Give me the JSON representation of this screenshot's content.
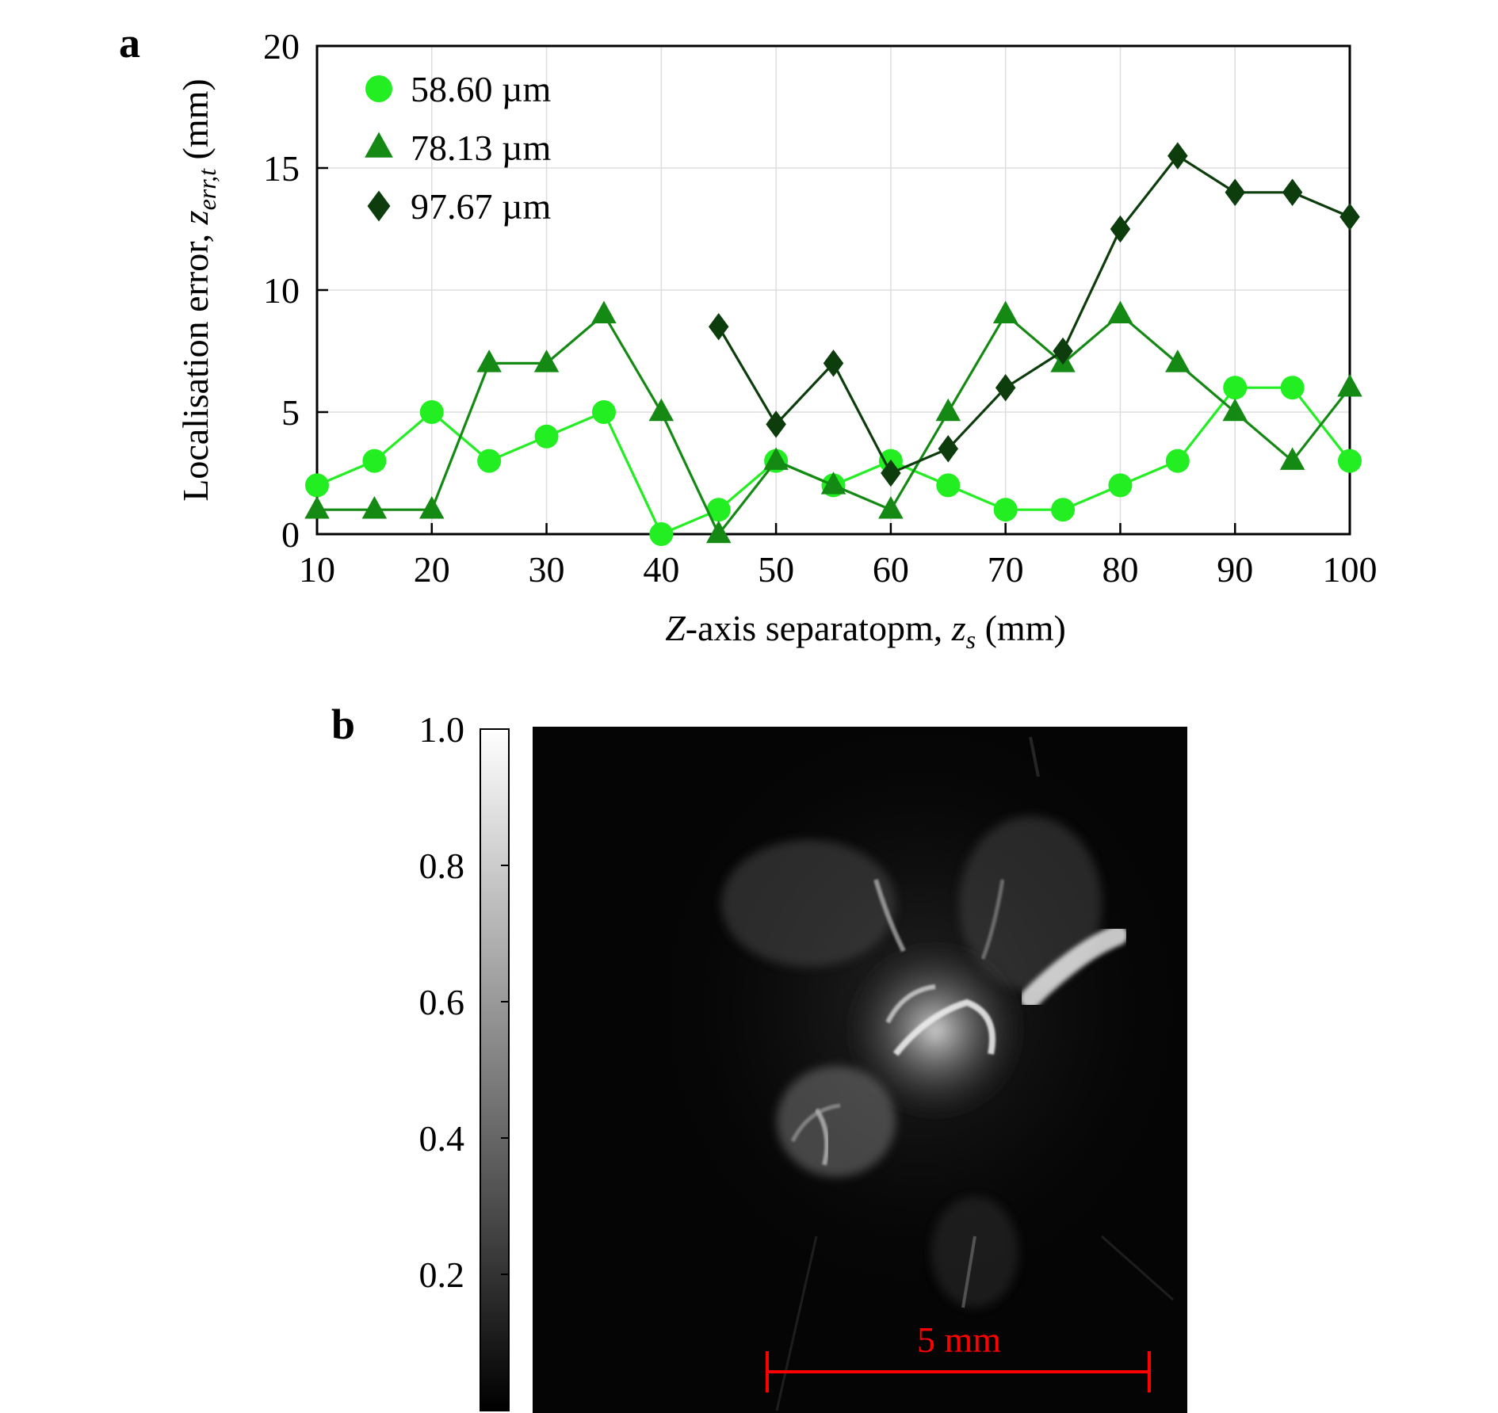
{
  "panel_a": {
    "label": "a",
    "ylabel": {
      "prefix": "Localisation error, ",
      "var": "z",
      "sub": "err,t",
      "suffix": " (mm)"
    },
    "xlabel": {
      "var_prefix": "Z",
      "mid": "-axis separatopm, ",
      "var": "z",
      "sub": "s",
      "suffix": " (mm)"
    }
  },
  "panel_b": {
    "label": "b",
    "colorbar_ticks": [
      "1.0",
      "0.8",
      "0.6",
      "0.4",
      "0.2"
    ],
    "colorbar_values": [
      1.0,
      0.8,
      0.6,
      0.4,
      0.2
    ],
    "colormap": "grayscale",
    "scale_bar_label": "5 mm",
    "scale_bar_color": "#ff0000"
  },
  "chart_data": {
    "type": "line",
    "xlim": [
      10,
      100
    ],
    "ylim": [
      0,
      20
    ],
    "xticks": [
      "10",
      "20",
      "30",
      "40",
      "50",
      "60",
      "70",
      "80",
      "90",
      "100"
    ],
    "yticks": [
      "0",
      "5",
      "10",
      "15",
      "20"
    ],
    "grid": true,
    "legend_position": "top-left",
    "series": [
      {
        "name": "58.60 µm",
        "marker": "circle",
        "color": "#22ee22",
        "x": [
          10,
          15,
          20,
          25,
          30,
          35,
          40,
          45,
          50,
          55,
          60,
          65,
          70,
          75,
          80,
          85,
          90,
          95,
          100
        ],
        "y": [
          2,
          3,
          5,
          3,
          4,
          5,
          0,
          1,
          3,
          2,
          3,
          2,
          1,
          1,
          2,
          3,
          6,
          6,
          3
        ]
      },
      {
        "name": "78.13 µm",
        "marker": "triangle",
        "color": "#148a14",
        "x": [
          10,
          15,
          20,
          25,
          30,
          35,
          40,
          45,
          50,
          55,
          60,
          65,
          70,
          75,
          80,
          85,
          90,
          95,
          100
        ],
        "y": [
          1,
          1,
          1,
          7,
          7,
          9,
          5,
          0,
          3,
          2,
          1,
          5,
          9,
          7,
          9,
          7,
          5,
          3,
          6
        ]
      },
      {
        "name": "97.67 µm",
        "marker": "diamond",
        "color": "#0d3d0d",
        "x": [
          45,
          50,
          55,
          60,
          65,
          70,
          75,
          80,
          85,
          90,
          95,
          100
        ],
        "y": [
          8.5,
          4.5,
          7,
          2.5,
          3.5,
          6,
          7.5,
          12.5,
          15.5,
          14,
          14,
          13
        ]
      }
    ]
  }
}
